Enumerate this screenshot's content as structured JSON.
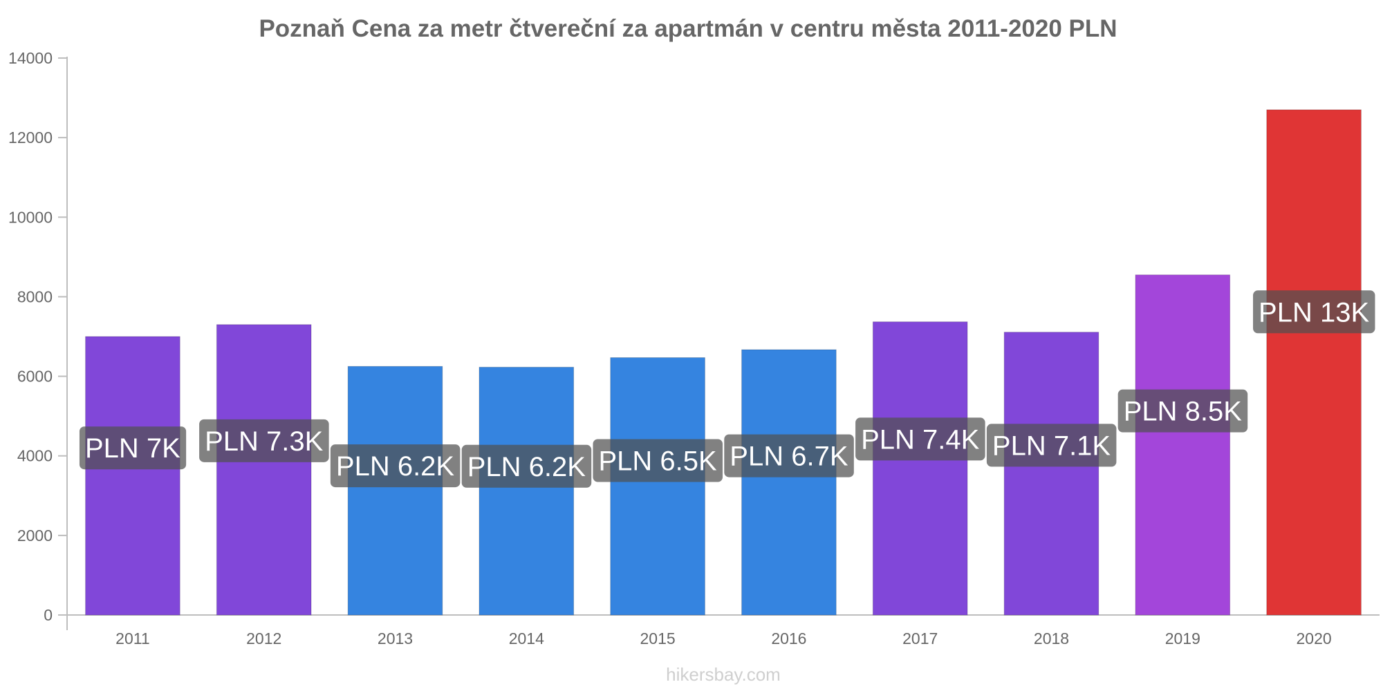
{
  "chart_data": {
    "type": "bar",
    "title": "Poznaň Cena za metr čtvereční za apartmán v centru města 2011-2020 PLN",
    "categories": [
      "2011",
      "2012",
      "2013",
      "2014",
      "2015",
      "2016",
      "2017",
      "2018",
      "2019",
      "2020"
    ],
    "values": [
      7000,
      7300,
      6250,
      6230,
      6470,
      6670,
      7370,
      7110,
      8550,
      12700
    ],
    "data_labels": [
      "PLN 7K",
      "PLN 7.3K",
      "PLN 6.2K",
      "PLN 6.2K",
      "PLN 6.5K",
      "PLN 6.7K",
      "PLN 7.4K",
      "PLN 7.1K",
      "PLN 8.5K",
      "PLN 13K"
    ],
    "bar_colors": [
      "#8147d9",
      "#8147d9",
      "#3584e0",
      "#3584e0",
      "#3584e0",
      "#3584e0",
      "#8147d9",
      "#8147d9",
      "#a346da",
      "#e03535"
    ],
    "ylim": [
      0,
      14000
    ],
    "yticks": [
      "0",
      "2000",
      "4000",
      "6000",
      "8000",
      "10000",
      "12000",
      "14000"
    ],
    "xlabel": "",
    "ylabel": "",
    "grid": false,
    "legend": "none",
    "watermark": "hikersbay.com"
  }
}
